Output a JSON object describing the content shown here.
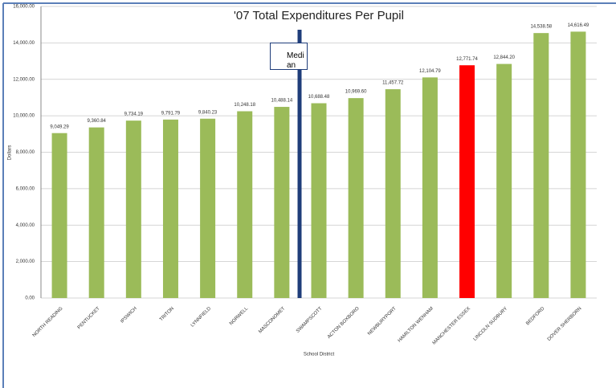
{
  "chart_data": {
    "type": "bar",
    "title": "'07 Total Expenditures Per Pupil",
    "x_label": "School District",
    "y_label": "Dollars",
    "annotation": "Median",
    "categories": [
      "NORTH READING",
      "PENTUCKET",
      "IPSWICH",
      "TRITON",
      "LYNNFIELD",
      "NORWELL",
      "MASCONOMET",
      "SWAMPSCOTT",
      "ACTON BOXBORO",
      "NEWBURYPORT",
      "HAMILTON WENHAM",
      "MANCHESTER ESSEX",
      "LINCOLN SUDBURY",
      "BEDFORD",
      "DOVER SHERBORN"
    ],
    "values": [
      9049.29,
      9360.84,
      9734.19,
      9791.79,
      9840.23,
      10248.18,
      10488.14,
      10688.48,
      10969.6,
      11457.72,
      12104.79,
      12771.74,
      12844.2,
      14538.58,
      14616.49
    ],
    "value_labels": [
      "9,049.29",
      "9,360.84",
      "9,734.19",
      "9,791.79",
      "9,840.23",
      "10,248.18",
      "10,488.14",
      "10,688.48",
      "10,969.60",
      "11,457.72",
      "12,104.79",
      "12,771.74",
      "12,844.20",
      "14,538.58",
      "14,616.49"
    ],
    "colors": [
      "#9bbb59",
      "#9bbb59",
      "#9bbb59",
      "#9bbb59",
      "#9bbb59",
      "#9bbb59",
      "#9bbb59",
      "#9bbb59",
      "#9bbb59",
      "#9bbb59",
      "#9bbb59",
      "#ff0000",
      "#9bbb59",
      "#9bbb59",
      "#9bbb59"
    ],
    "ylim": [
      0,
      16000
    ],
    "yticks": [
      {
        "value": 0,
        "label": "0.00"
      },
      {
        "value": 2000,
        "label": "2,000.00"
      },
      {
        "value": 4000,
        "label": "4,000.00"
      },
      {
        "value": 6000,
        "label": "6,000.00"
      },
      {
        "value": 8000,
        "label": "8,000.00"
      },
      {
        "value": 10000,
        "label": "10,000.00"
      },
      {
        "value": 12000,
        "label": "12,000.00"
      },
      {
        "value": 14000,
        "label": "14,000.00"
      },
      {
        "value": 16000,
        "label": "16,000.00"
      }
    ],
    "grid": true
  }
}
